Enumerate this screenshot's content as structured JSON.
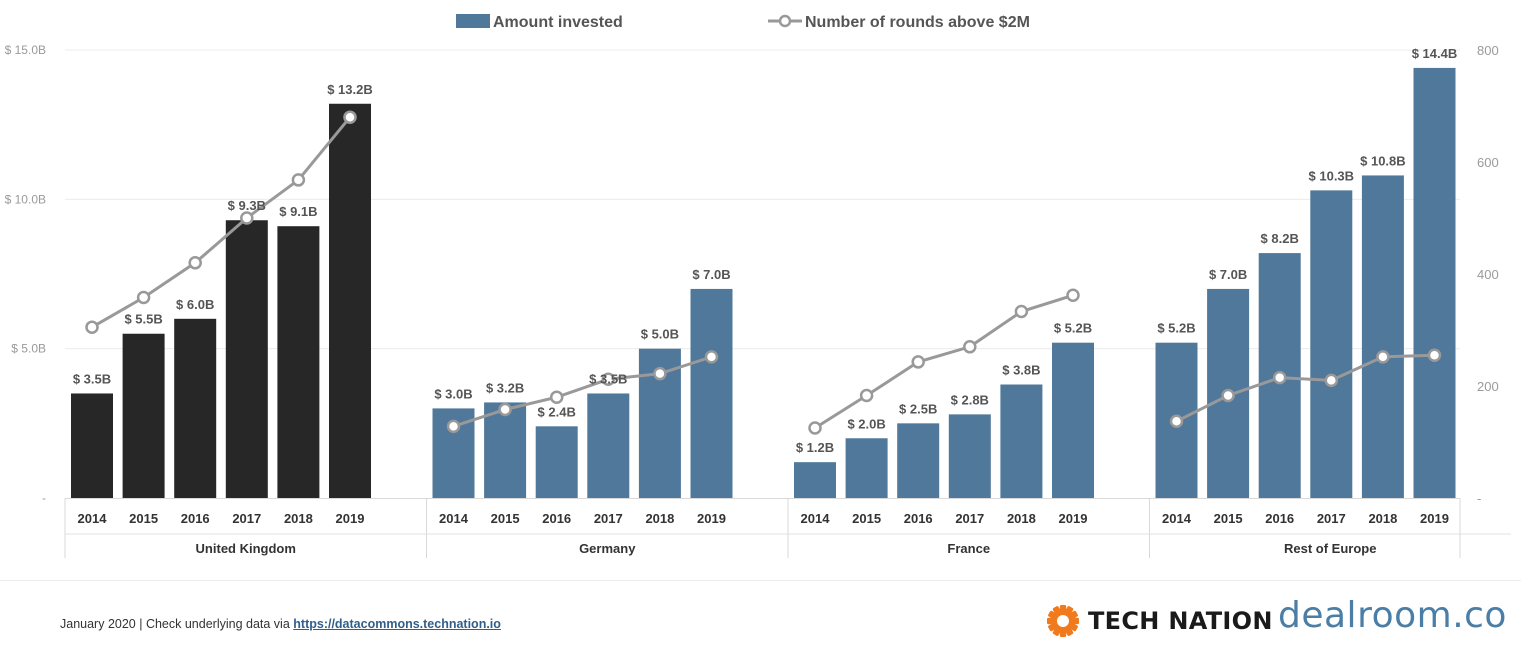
{
  "chart_data": {
    "type": "bar",
    "legend": {
      "placement": "top-center",
      "bar_label": "Amount invested",
      "line_label": "Number of rounds above $2M"
    },
    "left_axis": {
      "ylim": [
        0,
        15
      ],
      "ticks": [
        0,
        5,
        10,
        15
      ],
      "tick_labels": [
        "-",
        "$ 5.0B",
        "$ 10.0B",
        "$ 15.0B"
      ]
    },
    "right_axis": {
      "ylim": [
        0,
        800
      ],
      "ticks": [
        0,
        200,
        400,
        600,
        800
      ],
      "tick_labels": [
        "-",
        "200",
        "400",
        "600",
        "800"
      ]
    },
    "grid": true,
    "colors": {
      "uk_bar": "#272727",
      "other_bar": "#4f789b",
      "line": "#999999",
      "marker_fill": "#ffffff"
    },
    "groups": [
      {
        "name": "United Kingdom",
        "bar_color": "#272727",
        "years": [
          "2014",
          "2015",
          "2016",
          "2017",
          "2018",
          "2019"
        ],
        "amounts": [
          3.5,
          5.5,
          6.0,
          9.3,
          9.1,
          13.2
        ],
        "amount_labels": [
          "$ 3.5B",
          "$ 5.5B",
          "$ 6.0B",
          "$ 9.3B",
          "$ 9.1B",
          "$ 13.2B"
        ],
        "rounds": [
          305,
          358,
          420,
          500,
          568,
          680
        ]
      },
      {
        "name": "Germany",
        "bar_color": "#4f789b",
        "years": [
          "2014",
          "2015",
          "2016",
          "2017",
          "2018",
          "2019"
        ],
        "amounts": [
          3.0,
          3.2,
          2.4,
          3.5,
          5.0,
          7.0
        ],
        "amount_labels": [
          "$ 3.0B",
          "$ 3.2B",
          "$ 2.4B",
          "$ 3.5B",
          "$ 5.0B",
          "$ 7.0B"
        ],
        "rounds": [
          128,
          158,
          180,
          212,
          222,
          252
        ]
      },
      {
        "name": "France",
        "bar_color": "#4f789b",
        "years": [
          "2014",
          "2015",
          "2016",
          "2017",
          "2018",
          "2019"
        ],
        "amounts": [
          1.2,
          2.0,
          2.5,
          2.8,
          3.8,
          5.2
        ],
        "amount_labels": [
          "$ 1.2B",
          "$ 2.0B",
          "$ 2.5B",
          "$ 2.8B",
          "$ 3.8B",
          "$ 5.2B"
        ],
        "rounds": [
          125,
          183,
          243,
          270,
          333,
          362
        ]
      },
      {
        "name": "Rest of Europe",
        "bar_color": "#4f789b",
        "years": [
          "2014",
          "2015",
          "2016",
          "2017",
          "2018",
          "2019"
        ],
        "amounts": [
          5.2,
          7.0,
          8.2,
          10.3,
          10.8,
          14.4
        ],
        "amount_labels": [
          "$ 5.2B",
          "$ 7.0B",
          "$ 8.2B",
          "$ 10.3B",
          "$ 10.8B",
          "$ 14.4B"
        ],
        "rounds": [
          137,
          183,
          215,
          210,
          252,
          255
        ]
      }
    ]
  },
  "footer": {
    "note_prefix": "January 2020 | Check underlying data via ",
    "link_text": "https://datacommons.technation.io",
    "brand_tech_nation": "TECH NATION",
    "brand_dealroom": "dealroom.co",
    "tech_nation_logo_icon": "orange-sunburst-icon"
  }
}
